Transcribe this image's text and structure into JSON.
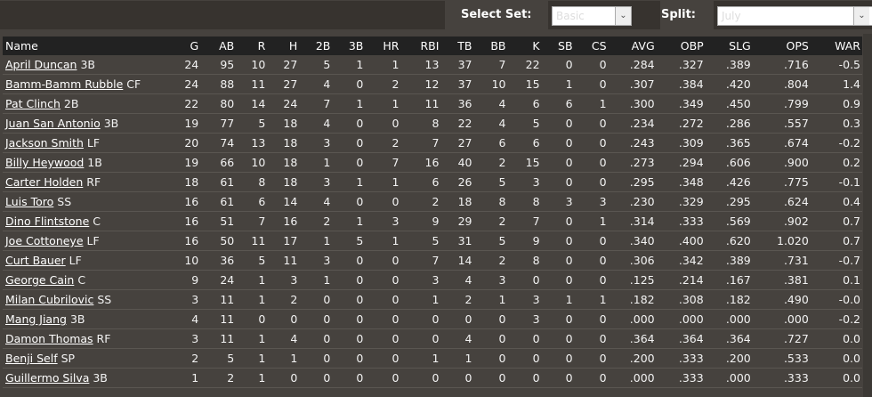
{
  "controls": {
    "select_set_label": "Select Set:",
    "select_set_value": "Basic",
    "split_label": "Split:",
    "split_value": "July"
  },
  "columns": [
    "Name",
    "G",
    "AB",
    "R",
    "H",
    "2B",
    "3B",
    "HR",
    "RBI",
    "TB",
    "BB",
    "K",
    "SB",
    "CS",
    "AVG",
    "OBP",
    "SLG",
    "OPS",
    "WAR"
  ],
  "rows": [
    {
      "name": "April Duncan",
      "pos": "3B",
      "stats": [
        "24",
        "95",
        "10",
        "27",
        "5",
        "1",
        "1",
        "13",
        "37",
        "7",
        "22",
        "0",
        "0",
        ".284",
        ".327",
        ".389",
        ".716",
        "-0.5"
      ]
    },
    {
      "name": "Bamm-Bamm Rubble",
      "pos": "CF",
      "stats": [
        "24",
        "88",
        "11",
        "27",
        "4",
        "0",
        "2",
        "12",
        "37",
        "10",
        "15",
        "1",
        "0",
        ".307",
        ".384",
        ".420",
        ".804",
        "1.4"
      ]
    },
    {
      "name": "Pat Clinch",
      "pos": "2B",
      "stats": [
        "22",
        "80",
        "14",
        "24",
        "7",
        "1",
        "1",
        "11",
        "36",
        "4",
        "6",
        "6",
        "1",
        ".300",
        ".349",
        ".450",
        ".799",
        "0.9"
      ]
    },
    {
      "name": "Juan San Antonio",
      "pos": "3B",
      "stats": [
        "19",
        "77",
        "5",
        "18",
        "4",
        "0",
        "0",
        "8",
        "22",
        "4",
        "5",
        "0",
        "0",
        ".234",
        ".272",
        ".286",
        ".557",
        "0.3"
      ]
    },
    {
      "name": "Jackson Smith",
      "pos": "LF",
      "stats": [
        "20",
        "74",
        "13",
        "18",
        "3",
        "0",
        "2",
        "7",
        "27",
        "6",
        "6",
        "0",
        "0",
        ".243",
        ".309",
        ".365",
        ".674",
        "-0.2"
      ]
    },
    {
      "name": "Billy Heywood",
      "pos": "1B",
      "stats": [
        "19",
        "66",
        "10",
        "18",
        "1",
        "0",
        "7",
        "16",
        "40",
        "2",
        "15",
        "0",
        "0",
        ".273",
        ".294",
        ".606",
        ".900",
        "0.2"
      ]
    },
    {
      "name": "Carter Holden",
      "pos": "RF",
      "stats": [
        "18",
        "61",
        "8",
        "18",
        "3",
        "1",
        "1",
        "6",
        "26",
        "5",
        "3",
        "0",
        "0",
        ".295",
        ".348",
        ".426",
        ".775",
        "-0.1"
      ]
    },
    {
      "name": "Luis Toro",
      "pos": "SS",
      "stats": [
        "16",
        "61",
        "6",
        "14",
        "4",
        "0",
        "0",
        "2",
        "18",
        "8",
        "8",
        "3",
        "3",
        ".230",
        ".329",
        ".295",
        ".624",
        "0.4"
      ]
    },
    {
      "name": "Dino Flintstone",
      "pos": "C",
      "stats": [
        "16",
        "51",
        "7",
        "16",
        "2",
        "1",
        "3",
        "9",
        "29",
        "2",
        "7",
        "0",
        "1",
        ".314",
        ".333",
        ".569",
        ".902",
        "0.7"
      ]
    },
    {
      "name": "Joe Cottoneye",
      "pos": "LF",
      "stats": [
        "16",
        "50",
        "11",
        "17",
        "1",
        "5",
        "1",
        "5",
        "31",
        "5",
        "9",
        "0",
        "0",
        ".340",
        ".400",
        ".620",
        "1.020",
        "0.7"
      ]
    },
    {
      "name": "Curt Bauer",
      "pos": "LF",
      "stats": [
        "10",
        "36",
        "5",
        "11",
        "3",
        "0",
        "0",
        "7",
        "14",
        "2",
        "8",
        "0",
        "0",
        ".306",
        ".342",
        ".389",
        ".731",
        "-0.7"
      ]
    },
    {
      "name": "George Cain",
      "pos": "C",
      "stats": [
        "9",
        "24",
        "1",
        "3",
        "1",
        "0",
        "0",
        "3",
        "4",
        "3",
        "0",
        "0",
        "0",
        ".125",
        ".214",
        ".167",
        ".381",
        "0.1"
      ]
    },
    {
      "name": "Milan Cubrilovic",
      "pos": "SS",
      "stats": [
        "3",
        "11",
        "1",
        "2",
        "0",
        "0",
        "0",
        "1",
        "2",
        "1",
        "3",
        "1",
        "1",
        ".182",
        ".308",
        ".182",
        ".490",
        "-0.0"
      ]
    },
    {
      "name": "Mang Jiang",
      "pos": "3B",
      "stats": [
        "4",
        "11",
        "0",
        "0",
        "0",
        "0",
        "0",
        "0",
        "0",
        "0",
        "3",
        "0",
        "0",
        ".000",
        ".000",
        ".000",
        ".000",
        "-0.2"
      ]
    },
    {
      "name": "Damon Thomas",
      "pos": "RF",
      "stats": [
        "3",
        "11",
        "1",
        "4",
        "0",
        "0",
        "0",
        "0",
        "4",
        "0",
        "0",
        "0",
        "0",
        ".364",
        ".364",
        ".364",
        ".727",
        "0.0"
      ]
    },
    {
      "name": "Benji Self",
      "pos": "SP",
      "stats": [
        "2",
        "5",
        "1",
        "1",
        "0",
        "0",
        "0",
        "1",
        "1",
        "0",
        "0",
        "0",
        "0",
        ".200",
        ".333",
        ".200",
        ".533",
        "0.0"
      ]
    },
    {
      "name": "Guillermo Silva",
      "pos": "3B",
      "stats": [
        "1",
        "2",
        "1",
        "0",
        "0",
        "0",
        "0",
        "0",
        "0",
        "0",
        "0",
        "0",
        "0",
        ".000",
        ".333",
        ".000",
        ".333",
        "0.0"
      ]
    }
  ]
}
